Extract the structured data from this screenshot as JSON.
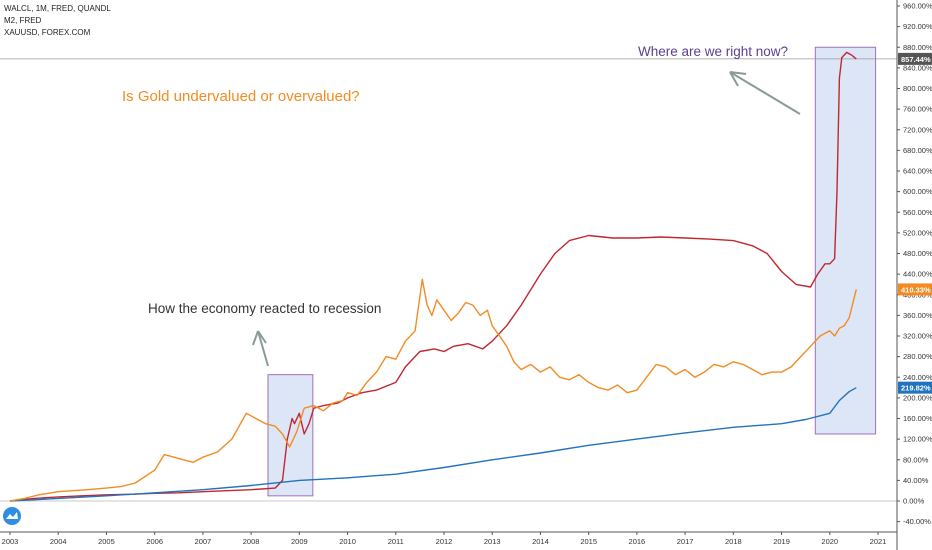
{
  "legend": {
    "line1": "WALCL, 1M, FRED, QUANDL",
    "line2": "M2, FRED",
    "line3": "XAUUSD, FOREX.COM"
  },
  "annotations": {
    "title": "Is Gold undervalued or overvalued?",
    "top_right": "Where are we right now?",
    "recession": "How the economy reacted to recession"
  },
  "colors": {
    "walcl": "#c2262f",
    "m2": "#2273bd",
    "gold": "#f28c22",
    "title": "#f28c22",
    "top_right_text": "#5b3f8f",
    "annotation_text": "#333333",
    "box_fill": "#dce6f7",
    "box_stroke": "#a070b8"
  },
  "chart_data": {
    "type": "line",
    "x_axis": {
      "type": "date",
      "range": [
        2002.9,
        2021.1
      ],
      "tick_labels": [
        "2003",
        "2004",
        "2005",
        "2006",
        "2007",
        "2008",
        "2009",
        "2010",
        "2011",
        "2012",
        "2013",
        "2014",
        "2015",
        "2016",
        "2017",
        "2018",
        "2019",
        "2020",
        "2021"
      ]
    },
    "y_axis": {
      "unit": "percent",
      "range": [
        -40,
        960
      ],
      "tick_labels": [
        "960.00%",
        "920.00%",
        "880.00%",
        "840.00%",
        "800.00%",
        "760.00%",
        "720.00%",
        "680.00%",
        "640.00%",
        "600.00%",
        "560.00%",
        "520.00%",
        "480.00%",
        "440.00%",
        "400.00%",
        "360.00%",
        "320.00%",
        "280.00%",
        "240.00%",
        "200.00%",
        "160.00%",
        "120.00%",
        "80.00%",
        "40.00%",
        "0.00%",
        "-40.00%"
      ]
    },
    "grid": false,
    "legend_placement": "top-left",
    "last_value_labels": {
      "walcl": "857.44%",
      "gold": "410.33%",
      "m2": "219.82%"
    },
    "series": [
      {
        "key": "walcl",
        "x": [
          2003.0,
          2003.5,
          2004.0,
          2004.5,
          2005.0,
          2005.5,
          2006.0,
          2006.5,
          2007.0,
          2007.5,
          2008.0,
          2008.5,
          2008.65,
          2008.75,
          2008.85,
          2008.9,
          2009.0,
          2009.1,
          2009.2,
          2009.3,
          2009.5,
          2009.8,
          2010.0,
          2010.3,
          2010.6,
          2011.0,
          2011.2,
          2011.5,
          2011.8,
          2012.0,
          2012.2,
          2012.5,
          2012.8,
          2013.0,
          2013.3,
          2013.6,
          2014.0,
          2014.3,
          2014.6,
          2015.0,
          2015.5,
          2016.0,
          2016.5,
          2017.0,
          2017.5,
          2018.0,
          2018.4,
          2018.7,
          2019.0,
          2019.3,
          2019.6,
          2019.75,
          2019.9,
          2020.0,
          2020.1,
          2020.15,
          2020.2,
          2020.25,
          2020.35,
          2020.45,
          2020.55
        ],
        "y": [
          0,
          5,
          8,
          10,
          12,
          13,
          15,
          16,
          18,
          20,
          22,
          25,
          40,
          120,
          160,
          150,
          170,
          130,
          150,
          180,
          185,
          190,
          200,
          210,
          215,
          230,
          260,
          290,
          295,
          290,
          300,
          305,
          295,
          310,
          340,
          380,
          440,
          480,
          505,
          515,
          510,
          510,
          512,
          510,
          508,
          505,
          495,
          480,
          445,
          420,
          415,
          440,
          460,
          460,
          470,
          600,
          820,
          860,
          870,
          865,
          857.44
        ]
      },
      {
        "key": "m2",
        "x": [
          2003.0,
          2004.0,
          2005.0,
          2006.0,
          2007.0,
          2008.0,
          2009.0,
          2010.0,
          2011.0,
          2012.0,
          2013.0,
          2014.0,
          2015.0,
          2016.0,
          2017.0,
          2018.0,
          2019.0,
          2019.5,
          2020.0,
          2020.2,
          2020.4,
          2020.55
        ],
        "y": [
          0,
          5,
          10,
          16,
          22,
          30,
          40,
          45,
          52,
          65,
          80,
          93,
          108,
          120,
          132,
          143,
          150,
          158,
          170,
          195,
          212,
          219.82
        ]
      },
      {
        "key": "gold",
        "x": [
          2003.0,
          2003.3,
          2003.6,
          2004.0,
          2004.3,
          2004.6,
          2005.0,
          2005.3,
          2005.6,
          2006.0,
          2006.2,
          2006.4,
          2006.6,
          2006.8,
          2007.0,
          2007.3,
          2007.6,
          2007.9,
          2008.1,
          2008.3,
          2008.5,
          2008.65,
          2008.8,
          2008.95,
          2009.1,
          2009.3,
          2009.5,
          2009.7,
          2009.9,
          2010.0,
          2010.2,
          2010.4,
          2010.6,
          2010.8,
          2011.0,
          2011.2,
          2011.4,
          2011.55,
          2011.65,
          2011.75,
          2011.85,
          2012.0,
          2012.15,
          2012.3,
          2012.45,
          2012.6,
          2012.75,
          2012.9,
          2013.0,
          2013.15,
          2013.3,
          2013.45,
          2013.6,
          2013.8,
          2014.0,
          2014.2,
          2014.4,
          2014.6,
          2014.8,
          2015.0,
          2015.2,
          2015.4,
          2015.6,
          2015.8,
          2016.0,
          2016.2,
          2016.4,
          2016.6,
          2016.8,
          2017.0,
          2017.2,
          2017.4,
          2017.6,
          2017.8,
          2018.0,
          2018.2,
          2018.4,
          2018.6,
          2018.8,
          2019.0,
          2019.2,
          2019.4,
          2019.6,
          2019.8,
          2020.0,
          2020.1,
          2020.2,
          2020.3,
          2020.4,
          2020.55
        ],
        "y": [
          0,
          5,
          12,
          18,
          20,
          22,
          25,
          28,
          35,
          60,
          90,
          85,
          80,
          75,
          85,
          95,
          120,
          170,
          160,
          150,
          145,
          130,
          105,
          135,
          180,
          185,
          175,
          190,
          195,
          210,
          205,
          230,
          250,
          280,
          275,
          310,
          330,
          430,
          380,
          360,
          390,
          370,
          350,
          365,
          385,
          380,
          360,
          370,
          340,
          320,
          300,
          270,
          255,
          265,
          250,
          260,
          240,
          235,
          245,
          230,
          220,
          215,
          225,
          210,
          215,
          240,
          265,
          260,
          245,
          255,
          240,
          250,
          265,
          260,
          270,
          265,
          255,
          245,
          250,
          250,
          260,
          280,
          300,
          320,
          330,
          320,
          335,
          340,
          355,
          410.33
        ]
      }
    ]
  }
}
